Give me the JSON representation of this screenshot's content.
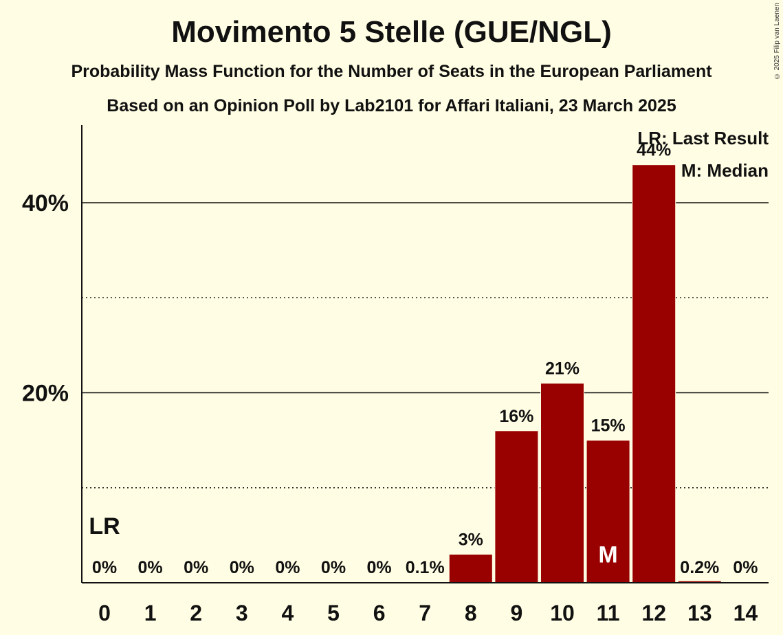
{
  "chart_data": {
    "type": "bar",
    "title": "Movimento 5 Stelle (GUE/NGL)",
    "subtitle": "Probability Mass Function for the Number of Seats in the European Parliament",
    "source": "Based on an Opinion Poll by Lab2101 for Affari Italiani, 23 March 2025",
    "copyright": "© 2025 Filip van Laenen",
    "categories": [
      "0",
      "1",
      "2",
      "3",
      "4",
      "5",
      "6",
      "7",
      "8",
      "9",
      "10",
      "11",
      "12",
      "13",
      "14"
    ],
    "values": [
      0,
      0,
      0,
      0,
      0,
      0,
      0,
      0.1,
      3,
      16,
      21,
      15,
      44,
      0.2,
      0
    ],
    "value_labels": [
      "0%",
      "0%",
      "0%",
      "0%",
      "0%",
      "0%",
      "0%",
      "0.1%",
      "3%",
      "16%",
      "21%",
      "15%",
      "44%",
      "0.2%",
      "0%"
    ],
    "ylim": [
      0,
      48
    ],
    "major_gridlines": [
      20,
      40
    ],
    "minor_gridlines": [
      10,
      30
    ],
    "y_tick_labels": [
      "20%",
      "40%"
    ],
    "last_result_seat": 0,
    "last_result_marker": "LR",
    "median_seat": 11,
    "median_marker": "M",
    "legend": [
      "LR: Last Result",
      "M: Median"
    ],
    "bar_color": "#990000",
    "background_color": "#fffde3"
  }
}
